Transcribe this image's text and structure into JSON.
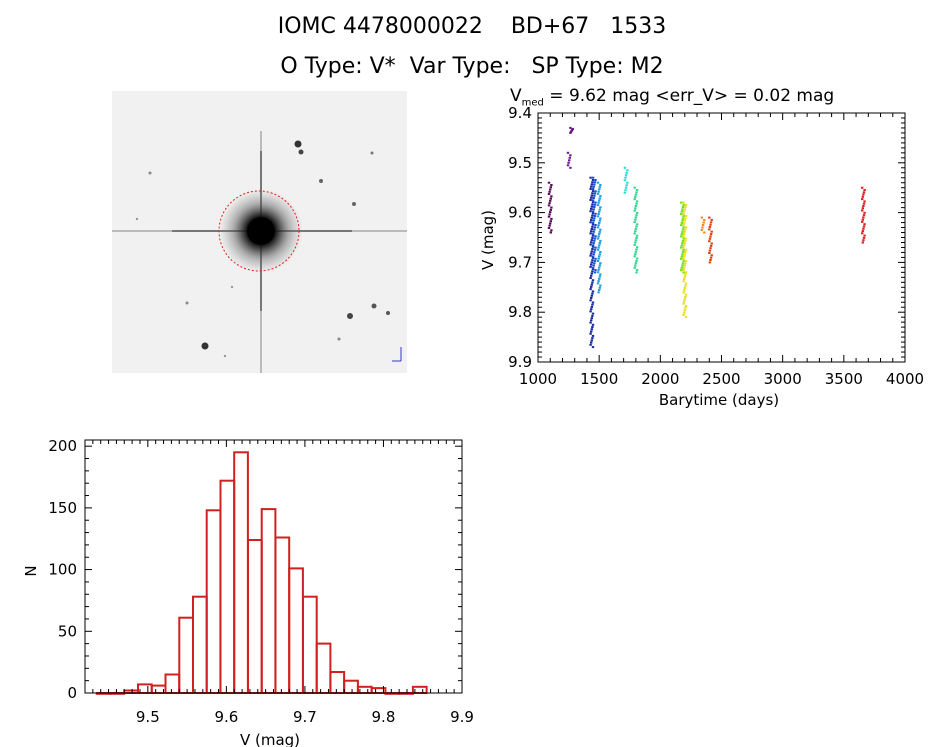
{
  "header": {
    "title_line1": "IOMC 4478000022    BD+67   1533",
    "title_line2": "O Type: V*  Var Type:   SP Type: M2"
  },
  "lightcurve_title": {
    "v_symbol": "V",
    "v_subscript": "med",
    "rest": " = 9.62 mag <err_V> = 0.02 mag"
  },
  "chart_data": [
    {
      "type": "scatter",
      "name": "light-curve",
      "xlabel": "Barytime (days)",
      "ylabel": "V (mag)",
      "xlim": [
        1000,
        4000
      ],
      "ylim": [
        9.9,
        9.4
      ],
      "y_inverted": true,
      "xticks": [
        1000,
        1500,
        2000,
        2500,
        3000,
        3500,
        4000
      ],
      "yticks": [
        9.4,
        9.5,
        9.6,
        9.7,
        9.8,
        9.9
      ],
      "xtick_labels": [
        "1000",
        "1500",
        "2000",
        "2500",
        "3000",
        "3500",
        "4000"
      ],
      "ytick_labels": [
        "9.4",
        "9.5",
        "9.6",
        "9.7",
        "9.8",
        "9.9"
      ],
      "groups": [
        {
          "x": 1100,
          "y_min": 9.54,
          "y_max": 9.64,
          "color": "#5a0a5a"
        },
        {
          "x": 1255,
          "y_min": 9.48,
          "y_max": 9.51,
          "color": "#6a1a8a"
        },
        {
          "x": 1275,
          "y_min": 9.43,
          "y_max": 9.44,
          "color": "#6a1a8a"
        },
        {
          "x": 1440,
          "y_min": 9.53,
          "y_max": 9.87,
          "color": "#1a2aa0"
        },
        {
          "x": 1460,
          "y_min": 9.53,
          "y_max": 9.72,
          "color": "#1a50d0"
        },
        {
          "x": 1500,
          "y_min": 9.54,
          "y_max": 9.76,
          "color": "#20a0e0"
        },
        {
          "x": 1720,
          "y_min": 9.51,
          "y_max": 9.56,
          "color": "#30d8d8"
        },
        {
          "x": 1800,
          "y_min": 9.55,
          "y_max": 9.72,
          "color": "#30d890"
        },
        {
          "x": 2180,
          "y_min": 9.58,
          "y_max": 9.72,
          "color": "#70e020"
        },
        {
          "x": 2200,
          "y_min": 9.58,
          "y_max": 9.81,
          "color": "#e8e020"
        },
        {
          "x": 2350,
          "y_min": 9.61,
          "y_max": 9.64,
          "color": "#f08a10"
        },
        {
          "x": 2410,
          "y_min": 9.61,
          "y_max": 9.7,
          "color": "#e04010"
        },
        {
          "x": 3660,
          "y_min": 9.55,
          "y_max": 9.66,
          "color": "#e02020"
        }
      ]
    },
    {
      "type": "bar",
      "name": "histogram",
      "xlabel": "V (mag)",
      "ylabel": "N",
      "xlim": [
        9.42,
        9.9
      ],
      "ylim": [
        0,
        205
      ],
      "xticks": [
        9.5,
        9.6,
        9.7,
        9.8,
        9.9
      ],
      "yticks": [
        0,
        50,
        100,
        150,
        200
      ],
      "xtick_labels": [
        "9.5",
        "9.6",
        "9.7",
        "9.8",
        "9.9"
      ],
      "ytick_labels": [
        "0",
        "50",
        "100",
        "150",
        "200"
      ],
      "bin_start": 9.435,
      "bin_width": 0.0175,
      "values": [
        0,
        0,
        2,
        7,
        6,
        15,
        61,
        78,
        148,
        172,
        195,
        124,
        149,
        126,
        101,
        78,
        40,
        17,
        10,
        5,
        4,
        0,
        0,
        5
      ]
    }
  ],
  "thumbnail": {
    "top_left_label": "",
    "marker_label": "",
    "bottom_label": ""
  }
}
